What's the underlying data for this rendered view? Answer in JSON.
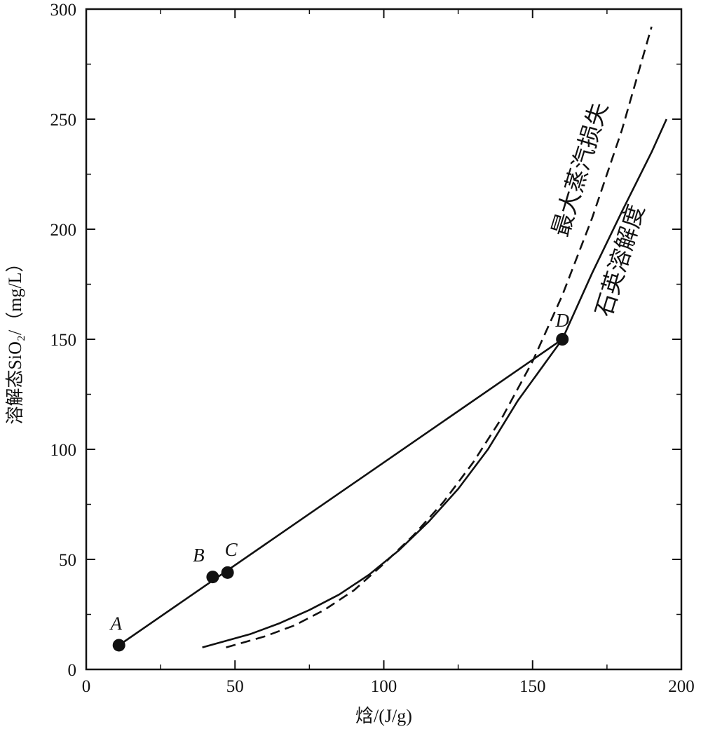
{
  "chart_data": {
    "type": "line",
    "xlabel": "焓/(J/g)",
    "ylabel": "溶解态SiO₂/（mg/L）",
    "xlim": [
      0,
      200
    ],
    "ylim": [
      0,
      300
    ],
    "x_ticks": [
      0,
      50,
      100,
      150,
      200
    ],
    "y_ticks": [
      0,
      50,
      100,
      150,
      200,
      250,
      300
    ],
    "grid": false,
    "series": [
      {
        "name": "石英溶解度",
        "style": "solid",
        "x": [
          39,
          55,
          65,
          75,
          85,
          95,
          105,
          115,
          125,
          135,
          145,
          160,
          170,
          180,
          190,
          195
        ],
        "y": [
          10,
          16,
          21,
          27,
          34,
          43,
          54,
          67,
          82,
          100,
          122,
          150,
          180,
          208,
          235,
          250
        ]
      },
      {
        "name": "最大蒸汽损失",
        "style": "dashed",
        "x": [
          47,
          60,
          70,
          80,
          90,
          100,
          110,
          120,
          130,
          140,
          150,
          160,
          170,
          180,
          190
        ],
        "y": [
          10,
          15,
          20,
          27,
          36,
          48,
          61,
          76,
          94,
          115,
          140,
          170,
          205,
          245,
          292
        ]
      },
      {
        "name": "",
        "style": "solid",
        "x": [
          11,
          160
        ],
        "y": [
          11,
          150
        ]
      }
    ],
    "points": [
      {
        "label": "A",
        "x": 11,
        "y": 11
      },
      {
        "label": "B",
        "x": 42.5,
        "y": 42
      },
      {
        "label": "C",
        "x": 47.5,
        "y": 44
      },
      {
        "label": "D",
        "x": 160,
        "y": 150
      }
    ]
  }
}
